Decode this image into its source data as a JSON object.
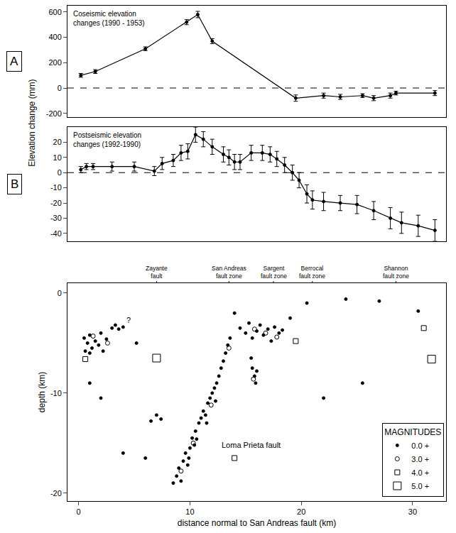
{
  "chart_data": [
    {
      "type": "line",
      "panel_label": "A",
      "title": "Coseismic elevation changes (1990 - 1953)",
      "y_label": "Elevation change (mm)",
      "x": [
        0.2,
        1.5,
        6,
        9.7,
        10.7,
        12,
        19.5,
        22,
        23.5,
        25.5,
        26.5,
        28,
        28.5,
        32
      ],
      "values": [
        100,
        130,
        310,
        520,
        580,
        370,
        -80,
        -60,
        -70,
        -60,
        -80,
        -60,
        -40,
        -40
      ],
      "errors": [
        15,
        15,
        15,
        20,
        25,
        20,
        25,
        20,
        20,
        15,
        20,
        20,
        15,
        20
      ],
      "baseline": 0,
      "xlim": [
        -1,
        33
      ],
      "ylim": [
        -230,
        650
      ],
      "yticks": [
        -200,
        0,
        200,
        400,
        600
      ],
      "tick_labels": "y",
      "grid": false,
      "color": "#000000",
      "marker": "dot",
      "line_style": "solid"
    },
    {
      "type": "line",
      "panel_label": "B",
      "title": "Postseismic elevation changes (1992-1990)",
      "x": [
        0.2,
        0.7,
        1.3,
        3,
        5,
        6.8,
        7.5,
        8.5,
        9.2,
        9.8,
        10.5,
        11.2,
        12,
        13,
        13.5,
        14,
        14.5,
        15.5,
        16.5,
        17.2,
        17.8,
        18.5,
        19.2,
        19.8,
        20.5,
        21,
        22,
        23.5,
        25,
        26.5,
        28,
        29,
        30.5,
        32
      ],
      "values": [
        2,
        4,
        4,
        4,
        4,
        1,
        6,
        8,
        13,
        14,
        25,
        22,
        17,
        12,
        10,
        7,
        7,
        13,
        13,
        12,
        9,
        5,
        0,
        -5,
        -14,
        -18,
        -19,
        -20,
        -21,
        -25,
        -30,
        -33,
        -35,
        -38
      ],
      "errors": [
        2,
        2,
        2,
        3,
        3,
        3,
        4,
        4,
        5,
        5,
        5,
        5,
        5,
        5,
        5,
        5,
        5,
        5,
        5,
        5,
        5,
        5,
        5,
        5,
        6,
        6,
        6,
        5,
        6,
        6,
        7,
        7,
        7,
        7
      ],
      "baseline": 0,
      "xlim": [
        -1,
        33
      ],
      "ylim": [
        -45,
        30
      ],
      "yticks": [
        -40,
        -30,
        -20,
        -10,
        0,
        10,
        20
      ],
      "tick_labels": "y",
      "grid": false,
      "color": "#000000",
      "marker": "dot",
      "line_style": "solid"
    },
    {
      "type": "scatter",
      "x_label": "distance normal to San Andreas fault (km)",
      "y_label": "depth (km)",
      "xlim": [
        -1,
        33
      ],
      "xticks": [
        0,
        10,
        20,
        30
      ],
      "ylim": [
        -20.8,
        1
      ],
      "yticks": [
        0,
        -10,
        -20
      ],
      "grid": false,
      "legend": "bottom right",
      "legend_title": "MAGNITUDES",
      "faults": [
        {
          "text": "Zayante fault",
          "x": 7
        },
        {
          "text": "San Andreas fault zone",
          "x": 13.5
        },
        {
          "text": "Sargent fault zone",
          "x": 17.5
        },
        {
          "text": "Berrocal fault zone",
          "x": 21
        },
        {
          "text": "Shannon fault zone",
          "x": 28.5
        }
      ],
      "annotations": [
        {
          "text": "?",
          "x": 4.5,
          "y": -2.7
        },
        {
          "text": "Loma Prieta fault",
          "x": 15.5,
          "y": -15.2
        }
      ],
      "series": [
        {
          "name": "0.0 +",
          "marker": "dot",
          "color": "#000000",
          "x": [
            0.5,
            0.8,
            1,
            1.2,
            1.5,
            1.8,
            2,
            2.2,
            2.5,
            3,
            3.3,
            3.6,
            4,
            1,
            0.6,
            8.5,
            8.8,
            9,
            9.2,
            9.4,
            9.6,
            9.8,
            10,
            10.2,
            10.4,
            10.5,
            10.8,
            11,
            11.2,
            11.4,
            11.6,
            11.8,
            12,
            12.2,
            12.4,
            12.6,
            12.8,
            13,
            13.2,
            13.4,
            13.6,
            10.6,
            9.9,
            11.5,
            12.3,
            14.5,
            15,
            15.3,
            15.6,
            16,
            16.3,
            16.6,
            17,
            17.3,
            17.6,
            18,
            18.3,
            15.5,
            15.6,
            15.8,
            15.9,
            16,
            6.5,
            7,
            7.4,
            2,
            1,
            5.2,
            20.5,
            24,
            27,
            30.5,
            22,
            25.5,
            4,
            6,
            14,
            19
          ],
          "values": [
            -4.5,
            -5,
            -4.2,
            -5.5,
            -4.8,
            -5.2,
            -4,
            -5.8,
            -4.6,
            -3.5,
            -3.2,
            -3.6,
            -3.4,
            -6,
            -5.8,
            -19,
            -18.3,
            -17.5,
            -18.8,
            -16.8,
            -16,
            -17.2,
            -15.5,
            -14.5,
            -15.2,
            -13.8,
            -13,
            -12.5,
            -11.8,
            -12.2,
            -11,
            -10.5,
            -10,
            -9.5,
            -9,
            -8.3,
            -7.5,
            -6.8,
            -6,
            -5.2,
            -4.5,
            -14.6,
            -16.5,
            -13,
            -10.8,
            -3.5,
            -4,
            -3,
            -4.5,
            -3.8,
            -3.2,
            -4.2,
            -3.6,
            -4.8,
            -3.4,
            -4,
            -3.7,
            -6.5,
            -7.5,
            -8.3,
            -9,
            -7.8,
            -12.8,
            -12.2,
            -12.6,
            -10.5,
            -9,
            -5,
            -1,
            -0.6,
            -0.8,
            -1.8,
            -10.5,
            -9,
            -16,
            -16.5,
            -2,
            -2.5
          ]
        },
        {
          "name": "3.0 +",
          "marker": "circle",
          "color": "#000000",
          "x": [
            1.3,
            2.6,
            10.3,
            11.9,
            13.5,
            15.8,
            16.8,
            17.8,
            9.2,
            15.7
          ],
          "values": [
            -4.3,
            -5,
            -15,
            -11.2,
            -5.5,
            -3.6,
            -4,
            -4.4,
            -17.8,
            -8.6
          ]
        },
        {
          "name": "4.0 +",
          "marker": "square",
          "color": "#000000",
          "x": [
            0.6,
            14,
            19.5,
            31
          ],
          "values": [
            -6.6,
            -16.5,
            -4.8,
            -3.5
          ]
        },
        {
          "name": "5.0 +",
          "marker": "large square",
          "color": "#000000",
          "x": [
            7,
            31.7
          ],
          "values": [
            -6.5,
            -6.6
          ]
        }
      ]
    }
  ]
}
